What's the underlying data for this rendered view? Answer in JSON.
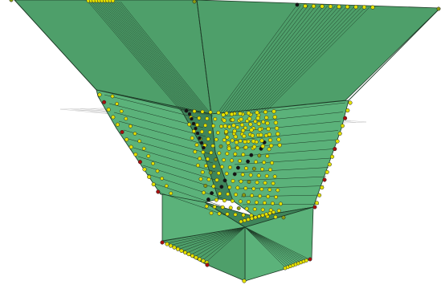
{
  "colors": {
    "background": "#ffffff",
    "facet_light": "#5bb27a",
    "facet_mid": "#4e9f6a",
    "facet_dark": "#3f855a",
    "edge": "#1d3a26",
    "grid": "#b8b8b8",
    "node_yellow": "#e3e000",
    "node_olive": "#8c9a10",
    "node_red": "#a81010",
    "node_black": "#141414"
  }
}
